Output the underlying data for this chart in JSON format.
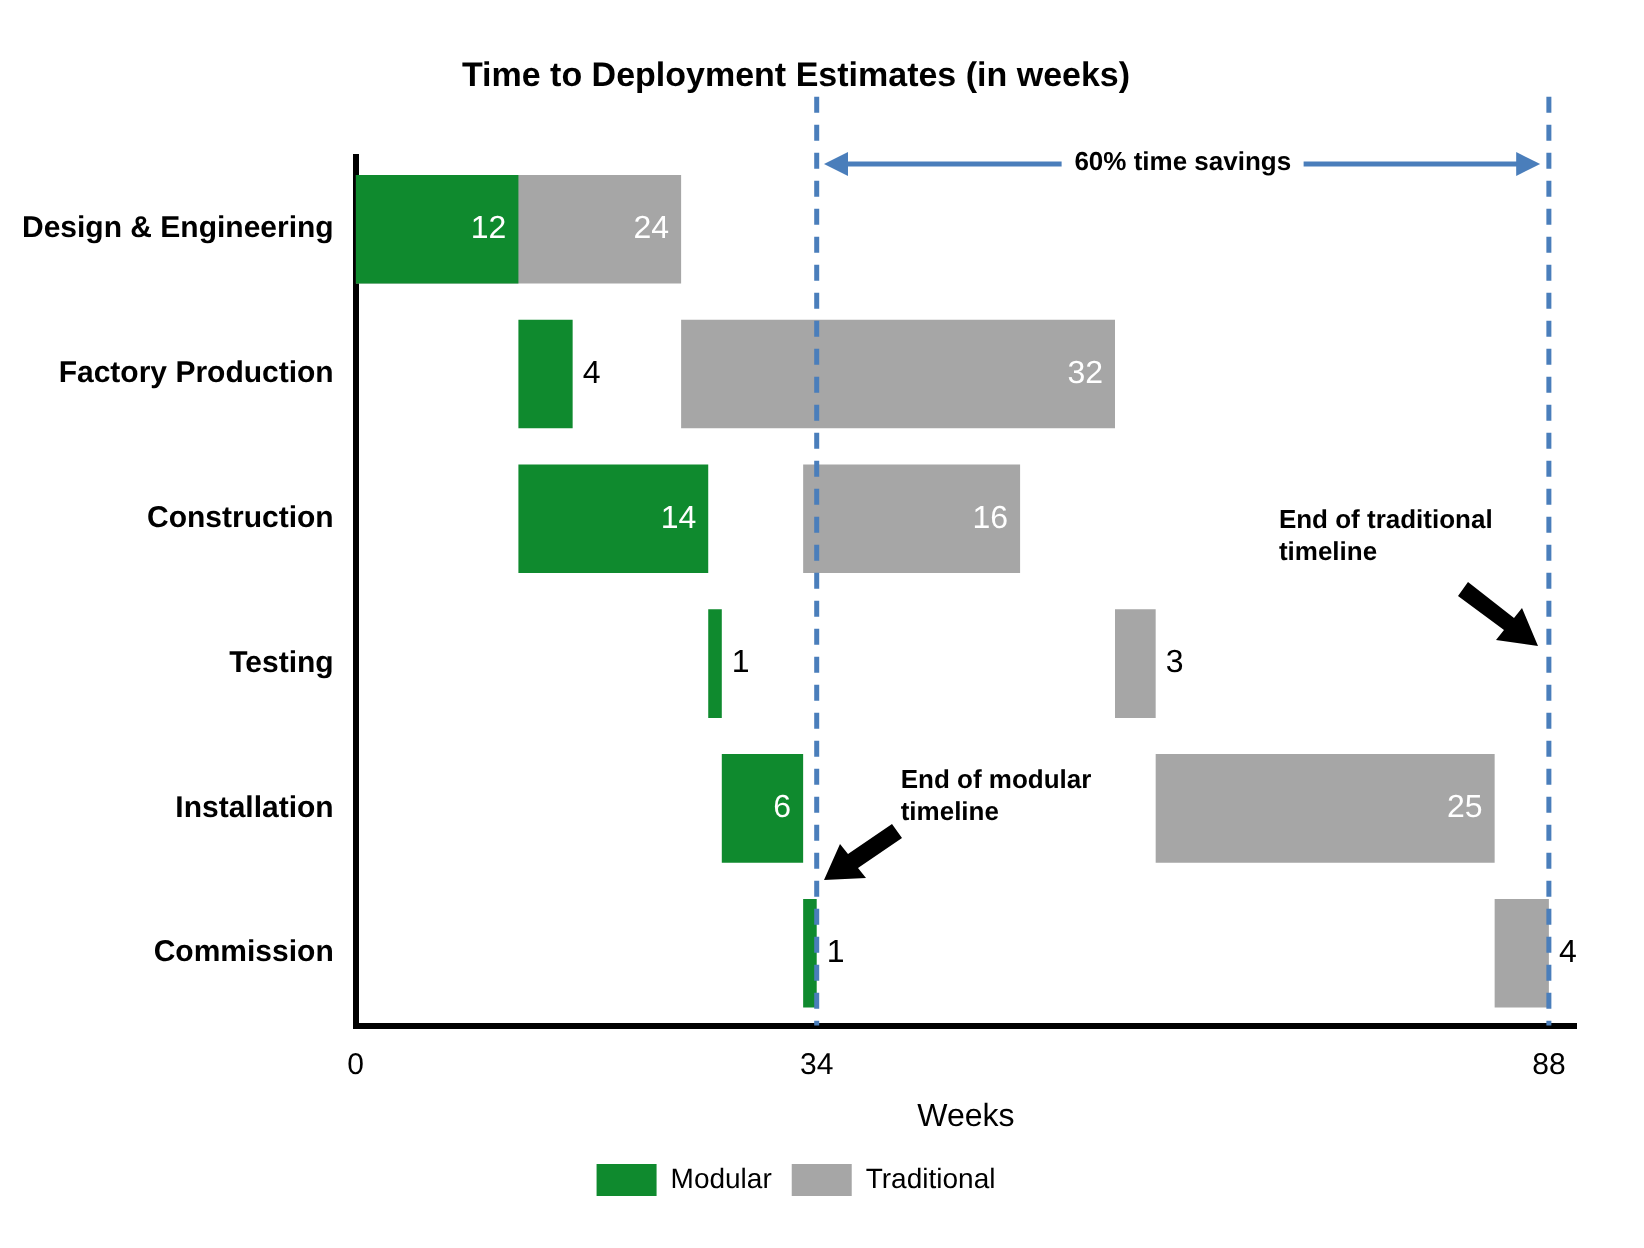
{
  "chart_data": {
    "type": "bar",
    "orientation": "horizontal",
    "title": "Time to Deployment Estimates (in weeks)",
    "xlabel": "Weeks",
    "categories": [
      "Design & Engineering",
      "Factory Production",
      "Construction",
      "Testing",
      "Installation",
      "Commission"
    ],
    "series": [
      {
        "name": "Modular",
        "color": "#0f8a2e",
        "base": [
          0,
          12,
          12,
          26,
          27,
          33
        ],
        "values": [
          12,
          4,
          14,
          1,
          6,
          1
        ]
      },
      {
        "name": "Traditional",
        "color": "#a6a6a6",
        "base": [
          0,
          24,
          33,
          56,
          59,
          84
        ],
        "values": [
          24,
          32,
          16,
          3,
          25,
          4
        ]
      }
    ],
    "xlim": [
      0,
      90
    ],
    "xticks": [
      0,
      34,
      88
    ],
    "grid": false,
    "legend": "bottom",
    "data_labels": true,
    "ref_lines": [
      {
        "axis": "x",
        "value": 34,
        "color": "#4a7ebb",
        "line_style": "dashed"
      },
      {
        "axis": "x",
        "value": 88,
        "color": "#4a7ebb",
        "line_style": "dashed"
      }
    ],
    "annotations": [
      "60% time savings",
      "End of modular timeline",
      "End of traditional timeline"
    ]
  }
}
